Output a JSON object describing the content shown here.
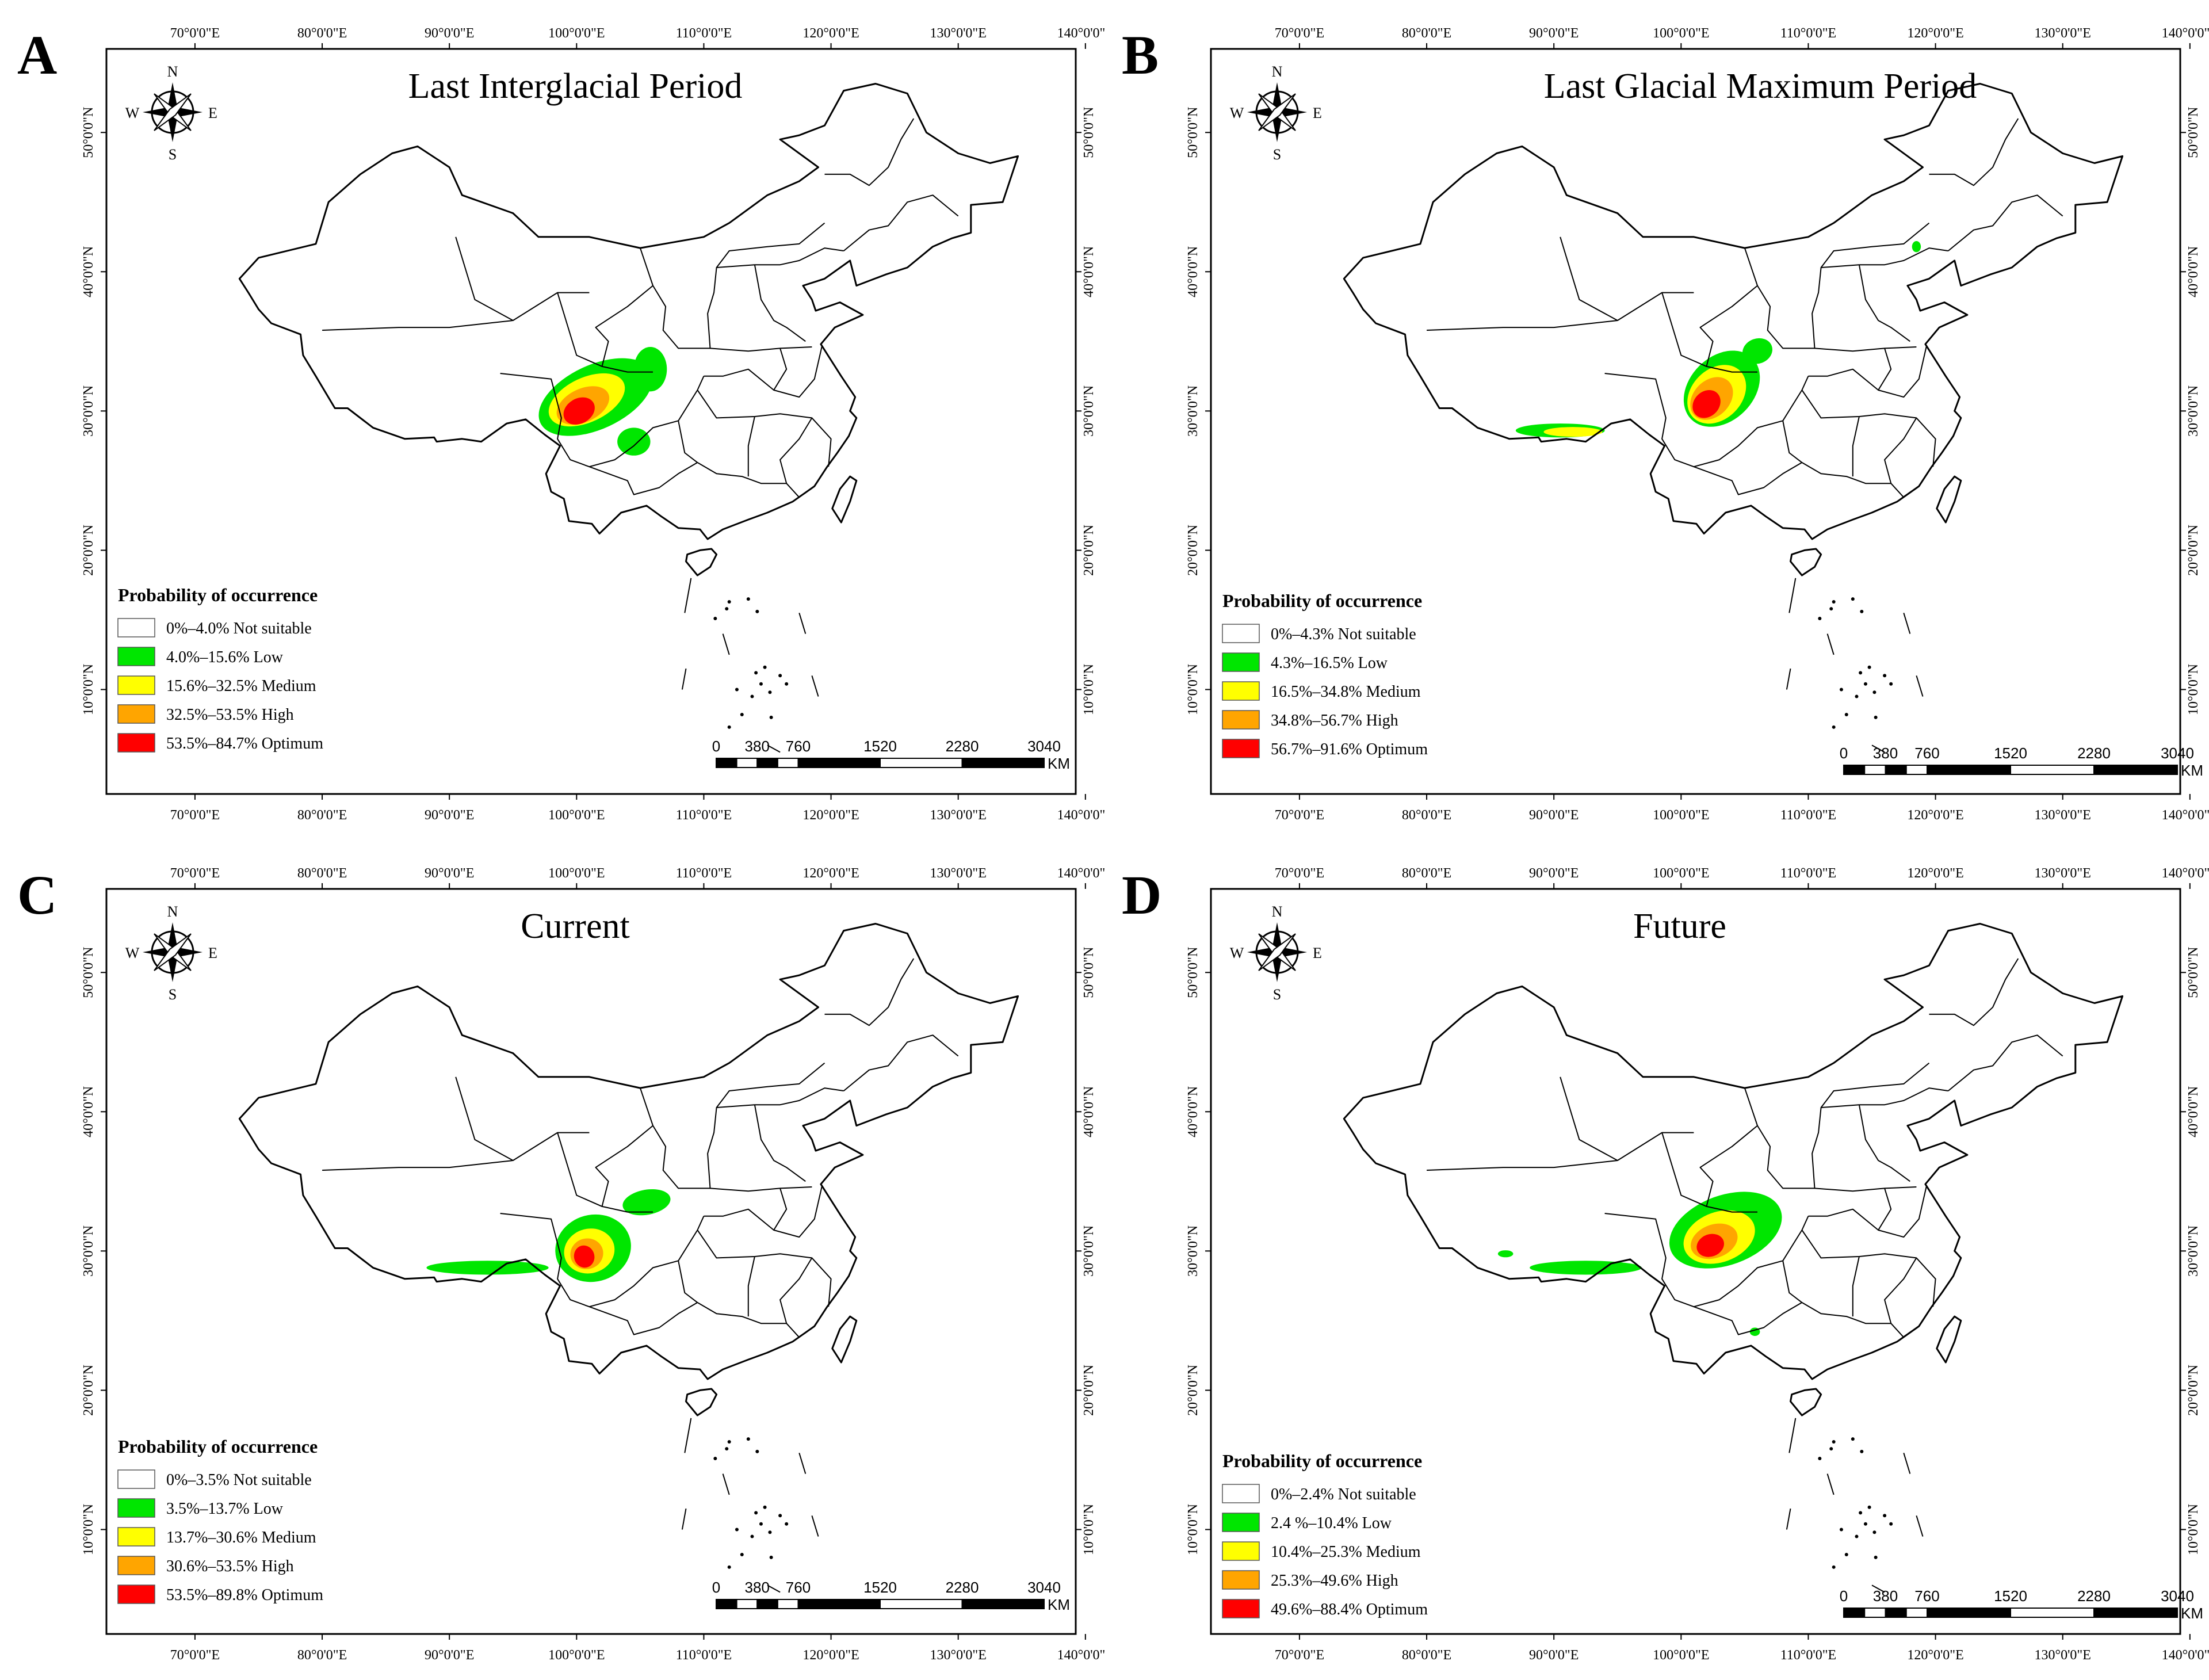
{
  "figure": {
    "lon_ticks": [
      "70°0'0\"E",
      "80°0'0\"E",
      "90°0'0\"E",
      "100°0'0\"E",
      "110°0'0\"E",
      "120°0'0\"E",
      "130°0'0\"E",
      "140°0'0\"E"
    ],
    "lat_ticks": [
      "10°0'0\"N",
      "20°0'0\"N",
      "30°0'0\"N",
      "40°0'0\"N",
      "50°0'0\"N"
    ],
    "legend_title": "Probability of occurrence",
    "compass": {
      "n": "N",
      "s": "S",
      "e": "E",
      "w": "W"
    },
    "scale": {
      "labels": [
        "0",
        "380",
        "760",
        "1520",
        "2280",
        "3040"
      ],
      "unit": "KM"
    },
    "colors": {
      "not_suitable": "#ffffff",
      "low": "#00e600",
      "medium": "#ffff00",
      "high": "#ffa500",
      "optimum": "#ff0000"
    }
  },
  "panels": [
    {
      "letter": "A",
      "title": "Last Interglacial Period",
      "legend": [
        {
          "range": "0%–4.0%",
          "class": "Not suitable",
          "color": "#ffffff"
        },
        {
          "range": "4.0%–15.6%",
          "class": "Low",
          "color": "#00e600"
        },
        {
          "range": "15.6%–32.5%",
          "class": "Medium",
          "color": "#ffff00"
        },
        {
          "range": "32.5%–53.5%",
          "class": "High",
          "color": "#ffa500"
        },
        {
          "range": "53.5%–84.7%",
          "class": "Optimum",
          "color": "#ff0000"
        }
      ]
    },
    {
      "letter": "B",
      "title": "Last Glacial Maximum Period",
      "legend": [
        {
          "range": "0%–4.3%",
          "class": "Not suitable",
          "color": "#ffffff"
        },
        {
          "range": "4.3%–16.5%",
          "class": "Low",
          "color": "#00e600"
        },
        {
          "range": "16.5%–34.8%",
          "class": "Medium",
          "color": "#ffff00"
        },
        {
          "range": "34.8%–56.7%",
          "class": "High",
          "color": "#ffa500"
        },
        {
          "range": "56.7%–91.6%",
          "class": "Optimum",
          "color": "#ff0000"
        }
      ]
    },
    {
      "letter": "C",
      "title": "Current",
      "legend": [
        {
          "range": "0%–3.5%",
          "class": "Not suitable",
          "color": "#ffffff"
        },
        {
          "range": "3.5%–13.7%",
          "class": "Low",
          "color": "#00e600"
        },
        {
          "range": "13.7%–30.6%",
          "class": "Medium",
          "color": "#ffff00"
        },
        {
          "range": "30.6%–53.5%",
          "class": "High",
          "color": "#ffa500"
        },
        {
          "range": "53.5%–89.8%",
          "class": "Optimum",
          "color": "#ff0000"
        }
      ]
    },
    {
      "letter": "D",
      "title": "Future",
      "legend": [
        {
          "range": "0%–2.4%",
          "class": "Not suitable",
          "color": "#ffffff"
        },
        {
          "range": "2.4 %–10.4%",
          "class": "Low",
          "color": "#00e600"
        },
        {
          "range": "10.4%–25.3%",
          "class": "Medium",
          "color": "#ffff00"
        },
        {
          "range": "25.3%–49.6%",
          "class": "High",
          "color": "#ffa500"
        },
        {
          "range": "49.6%–88.4%",
          "class": "Optimum",
          "color": "#ff0000"
        }
      ]
    }
  ]
}
